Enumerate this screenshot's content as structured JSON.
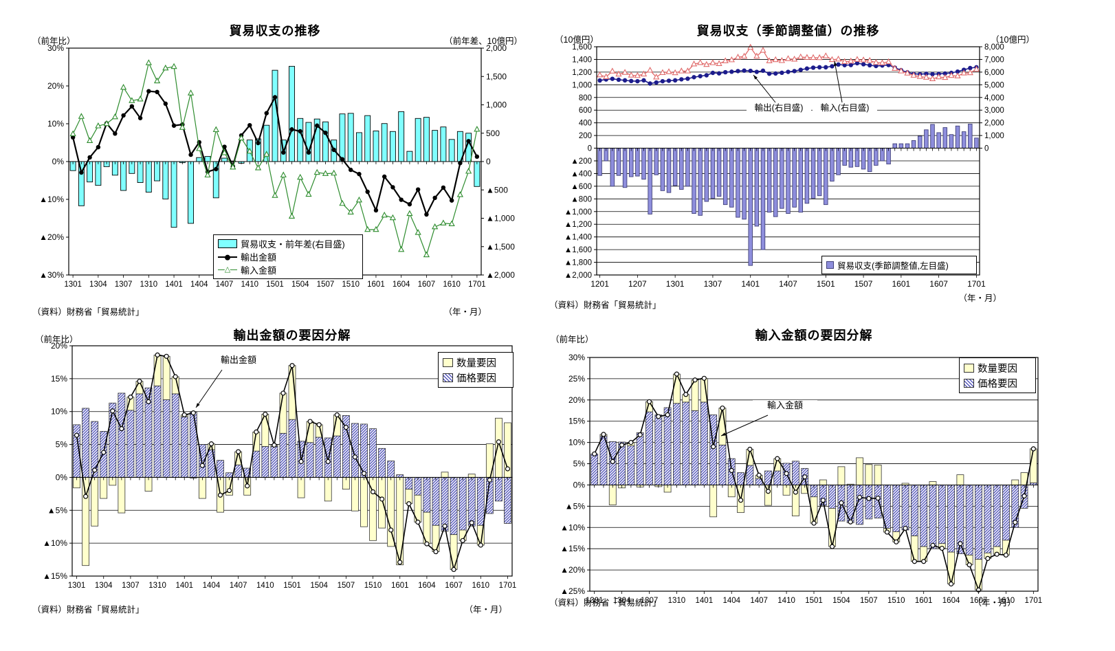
{
  "chart_data": [
    {
      "type": "bar",
      "title": "貿易収支の推移",
      "left_axis_unit": "（前年比）",
      "right_axis_unit": "（前年差、10億円）",
      "source": "（資料）財務省「貿易統計」",
      "x_axis_unit": "（年・月）",
      "n_points": 49,
      "label_every": 3,
      "x_tick_labels": [
        "1301",
        "1304",
        "1307",
        "1310",
        "1401",
        "1404",
        "1407",
        "1410",
        "1501",
        "1504",
        "1507",
        "1510",
        "1601",
        "1604",
        "1607",
        "1610",
        "1701"
      ],
      "y_left_ticks": [
        "30%",
        "20%",
        "10%",
        "0%",
        "▲10%",
        "▲20%",
        "▲30%"
      ],
      "y_left_range": [
        -30,
        30
      ],
      "y_right_ticks": [
        "2,000",
        "1,500",
        "1,000",
        "500",
        "0",
        "▲500",
        "▲1,000",
        "▲1,500",
        "▲2,000"
      ],
      "y_right_range": [
        -2000,
        2000
      ],
      "grid": false,
      "legend_position": "inside-bottom-center",
      "bar_series": {
        "label": "貿易収支・前年差(右目盛)",
        "color": "#80FFFF",
        "axis": "right",
        "values": [
          -160,
          -780,
          -360,
          -420,
          -90,
          -240,
          -510,
          -210,
          -370,
          -540,
          -340,
          -660,
          -1160,
          -20,
          -1090,
          70,
          90,
          -640,
          60,
          10,
          -30,
          380,
          400,
          640,
          1610,
          380,
          1680,
          760,
          690,
          750,
          700,
          380,
          840,
          850,
          510,
          810,
          540,
          670,
          530,
          880,
          180,
          760,
          780,
          550,
          610,
          390,
          530,
          500,
          -440
        ]
      },
      "line_series": [
        {
          "label": "輸出金額",
          "color": "#000000",
          "marker": "filled-circle",
          "values": [
            6.4,
            -2.9,
            1.1,
            3.8,
            10.1,
            7.4,
            12.2,
            14.6,
            11.5,
            18.6,
            18.4,
            15.3,
            9.5,
            9.8,
            1.8,
            5.1,
            -2.7,
            -2.0,
            3.9,
            -1.3,
            6.9,
            9.6,
            4.9,
            12.8,
            17.0,
            2.4,
            8.5,
            8.0,
            2.4,
            9.5,
            7.6,
            3.1,
            0.6,
            -2.2,
            -3.3,
            -8.0,
            -12.9,
            -4.0,
            -6.8,
            -10.1,
            -11.3,
            -7.4,
            -14.0,
            -9.6,
            -6.9,
            -10.3,
            -0.4,
            5.4,
            1.3
          ]
        },
        {
          "label": "輸入金額",
          "color": "#2E8C2E",
          "marker": "open-triangle",
          "values": [
            7.3,
            11.9,
            5.5,
            9.4,
            10.0,
            11.8,
            19.6,
            16.1,
            16.5,
            26.1,
            21.3,
            24.7,
            25.1,
            9.0,
            18.1,
            3.4,
            -3.6,
            8.4,
            2.3,
            -1.5,
            6.2,
            2.7,
            -1.7,
            1.9,
            -9.0,
            -3.6,
            -14.5,
            -4.2,
            -8.7,
            -2.9,
            -3.2,
            -3.1,
            -11.1,
            -13.4,
            -10.2,
            -18.0,
            -18.0,
            -14.2,
            -14.9,
            -23.3,
            -13.8,
            -18.8,
            -24.7,
            -17.3,
            -16.3,
            -16.5,
            -8.8,
            -2.6,
            8.5
          ]
        }
      ]
    },
    {
      "type": "bar",
      "title": "貿易収支（季節調整値）の推移",
      "left_axis_unit": "（10億円）",
      "right_axis_unit": "（10億円）",
      "source": "（資料）財務省「貿易統計」",
      "x_axis_unit": "（年・月）",
      "n_points": 61,
      "label_every": 6,
      "x_tick_labels": [
        "1201",
        "1207",
        "1301",
        "1307",
        "1401",
        "1407",
        "1501",
        "1507",
        "1601",
        "1607",
        "1701"
      ],
      "y_left_ticks": [
        "1,600",
        "1,400",
        "1,200",
        "1,000",
        "800",
        "600",
        "400",
        "200",
        "0",
        "▲200",
        "▲400",
        "▲600",
        "▲800",
        "▲1,000",
        "▲1,200",
        "▲1,400",
        "▲1,600",
        "▲1,800",
        "▲2,000"
      ],
      "y_left_range": [
        -2000,
        1600
      ],
      "y_right_ticks": [
        "8,000",
        "7,000",
        "6,000",
        "5,000",
        "4,000",
        "3,000",
        "2,000",
        "1,000",
        "0"
      ],
      "y_right_range": [
        0,
        8000
      ],
      "grid": true,
      "legend_position": "inside-bottom-right",
      "annotations": [
        "輸出(右目盛)",
        "輸入(右目盛)"
      ],
      "bar_series": {
        "label": "貿易収支(季節調整値,左目盛)",
        "color": "#8E8EDC",
        "axis": "left",
        "values": [
          -430,
          -200,
          -600,
          -430,
          -620,
          -450,
          -440,
          -490,
          -1040,
          -420,
          -670,
          -700,
          -590,
          -650,
          -600,
          -1030,
          -1060,
          -840,
          -790,
          -760,
          -890,
          -930,
          -1090,
          -1120,
          -1850,
          -1230,
          -1600,
          -1010,
          -1080,
          -950,
          -1030,
          -930,
          -1010,
          -870,
          -790,
          -750,
          -890,
          -520,
          -420,
          -270,
          -300,
          -290,
          -330,
          -370,
          -270,
          -200,
          -250,
          70,
          70,
          70,
          120,
          190,
          290,
          375,
          245,
          325,
          215,
          350,
          260,
          380,
          160
        ]
      },
      "line_series": [
        {
          "label": "輸出(右目盛)",
          "color": "#1C1C8C",
          "marker": "filled-circle",
          "values": [
            5340,
            5420,
            5470,
            5400,
            5350,
            5300,
            5280,
            5350,
            5100,
            5180,
            5280,
            5320,
            5350,
            5430,
            5480,
            5600,
            5680,
            5750,
            5940,
            5900,
            5990,
            6030,
            6080,
            6120,
            6100,
            6020,
            6110,
            5870,
            5890,
            5950,
            6020,
            6080,
            6180,
            6280,
            6350,
            6380,
            6380,
            6460,
            6600,
            6550,
            6560,
            6700,
            6620,
            6540,
            6480,
            6520,
            6560,
            6350,
            6150,
            5980,
            5860,
            5840,
            5870,
            5840,
            5860,
            5890,
            5940,
            6040,
            6180,
            6320,
            6380
          ]
        },
        {
          "label": "輸入(右目盛)",
          "color": "#E06A6A",
          "marker": "open-triangle",
          "values": [
            5770,
            5620,
            6070,
            5830,
            5970,
            5750,
            5720,
            5840,
            6140,
            5600,
            5950,
            6020,
            5940,
            6080,
            6080,
            6630,
            6740,
            6590,
            6730,
            6660,
            6880,
            6960,
            7170,
            7240,
            7950,
            7250,
            7710,
            6880,
            6970,
            6900,
            7050,
            7010,
            7190,
            7150,
            7140,
            7130,
            7270,
            6980,
            7020,
            6820,
            6860,
            6990,
            6950,
            6910,
            6750,
            6720,
            6810,
            6280,
            6080,
            5910,
            5740,
            5650,
            5580,
            5465,
            5615,
            5565,
            5725,
            5690,
            5920,
            5940,
            6220
          ]
        }
      ]
    },
    {
      "type": "bar",
      "title": "輸出金額の要因分解",
      "left_axis_unit": "（前年比）",
      "source": "（資料）財務省「貿易統計」",
      "x_axis_unit": "（年・月）",
      "n_points": 49,
      "label_every": 3,
      "x_tick_labels": [
        "1301",
        "1304",
        "1307",
        "1310",
        "1401",
        "1404",
        "1407",
        "1410",
        "1501",
        "1504",
        "1507",
        "1510",
        "1601",
        "1604",
        "1607",
        "1610",
        "1701"
      ],
      "y_left_ticks": [
        "20%",
        "15%",
        "10%",
        "5%",
        "0%",
        "▲5%",
        "▲10%",
        "▲15%"
      ],
      "y_left_range": [
        -15,
        20
      ],
      "grid": true,
      "legend_position": "inside-top-right",
      "annotation": "輸出金額",
      "bar_series": [
        {
          "label": "数量要因",
          "color": "#FFFFCC",
          "style": "solid",
          "values": [
            -1.6,
            -13.4,
            -7.4,
            -3.2,
            -1.2,
            -5.4,
            2.0,
            1.9,
            -2.1,
            4.7,
            6.6,
            2.6,
            0.3,
            -0.1,
            -3.2,
            0.9,
            -5.3,
            -2.7,
            2.0,
            -2.7,
            2.9,
            4.9,
            0.2,
            6.1,
            8.2,
            -3.1,
            3.2,
            1.9,
            -3.6,
            3.2,
            -1.8,
            -5.1,
            -7.5,
            -9.6,
            -7.7,
            -10.5,
            -13.3,
            -2.2,
            -4.1,
            -4.8,
            -4.0,
            0.8,
            -5.3,
            -1.6,
            0.5,
            -3.0,
            5.1,
            9.0,
            8.3
          ]
        },
        {
          "label": "価格要因",
          "color": "#5558BC",
          "style": "hatch",
          "values": [
            8.0,
            10.5,
            8.5,
            7.0,
            11.3,
            12.8,
            10.2,
            12.7,
            13.6,
            13.9,
            11.8,
            12.7,
            9.2,
            9.9,
            5.0,
            4.2,
            2.6,
            0.7,
            1.9,
            1.4,
            4.0,
            4.7,
            4.7,
            6.7,
            8.8,
            5.5,
            5.3,
            6.1,
            6.0,
            6.3,
            9.4,
            8.2,
            8.1,
            7.4,
            4.4,
            2.5,
            0.4,
            -1.8,
            -2.7,
            -5.3,
            -7.3,
            -8.2,
            -8.7,
            -8.0,
            -7.4,
            -7.3,
            -5.5,
            -3.6,
            -7.0
          ]
        }
      ],
      "line_series": [
        {
          "label": "輸出金額",
          "color": "#000000",
          "marker": "open-circle",
          "values": [
            6.4,
            -2.9,
            1.1,
            3.8,
            10.1,
            7.4,
            12.2,
            14.6,
            11.5,
            18.6,
            18.4,
            15.3,
            9.5,
            9.8,
            1.8,
            5.1,
            -2.7,
            -2.0,
            3.9,
            -1.3,
            6.9,
            9.6,
            4.9,
            12.8,
            17.0,
            2.4,
            8.5,
            8.0,
            2.4,
            9.5,
            7.6,
            3.1,
            0.6,
            -2.2,
            -3.3,
            -8.0,
            -12.9,
            -4.0,
            -6.8,
            -10.1,
            -11.3,
            -7.4,
            -14.0,
            -9.6,
            -6.9,
            -10.3,
            -0.4,
            5.4,
            1.3
          ]
        }
      ]
    },
    {
      "type": "bar",
      "title": "輸入金額の要因分解",
      "left_axis_unit": "（前年比）",
      "source": "（資料）財務省「貿易統計」",
      "x_axis_unit": "（年・月）",
      "n_points": 49,
      "label_every": 3,
      "x_tick_labels": [
        "1301",
        "1304",
        "1307",
        "1310",
        "1401",
        "1404",
        "1407",
        "1410",
        "1501",
        "1504",
        "1507",
        "1510",
        "1601",
        "1604",
        "1607",
        "1610",
        "1701"
      ],
      "y_left_ticks": [
        "30%",
        "25%",
        "20%",
        "15%",
        "10%",
        "5%",
        "0%",
        "▲5%",
        "▲10%",
        "▲15%",
        "▲20%",
        "▲25%"
      ],
      "y_left_range": [
        -25,
        30
      ],
      "grid": true,
      "legend_position": "inside-top-right",
      "annotation": "輸入金額",
      "bar_series": [
        {
          "label": "数量要因",
          "color": "#FFFFCC",
          "style": "solid",
          "values": [
            0.0,
            0.4,
            -4.7,
            -0.7,
            0.8,
            -0.5,
            2.4,
            -0.4,
            -1.7,
            6.9,
            1.8,
            7.2,
            5.6,
            -7.5,
            8.7,
            -2.8,
            -6.5,
            3.8,
            0.8,
            -4.8,
            2.9,
            -2.4,
            -7.3,
            -2.0,
            -6.2,
            1.2,
            -9.0,
            4.3,
            0.2,
            6.4,
            4.8,
            4.7,
            -0.9,
            -2.4,
            0.4,
            -6.0,
            -3.5,
            0.8,
            -1.1,
            -7.5,
            2.4,
            -2.3,
            -7.2,
            -1.3,
            -1.8,
            -3.5,
            1.2,
            2.9,
            8.0
          ]
        },
        {
          "label": "価格要因",
          "color": "#5558BC",
          "style": "hatch",
          "values": [
            7.3,
            11.5,
            10.2,
            10.1,
            9.2,
            12.3,
            17.2,
            16.5,
            18.2,
            19.2,
            19.5,
            17.5,
            19.5,
            16.5,
            9.4,
            6.2,
            2.9,
            4.6,
            1.5,
            3.3,
            3.3,
            5.1,
            5.6,
            3.9,
            -2.8,
            -4.8,
            -5.5,
            -8.5,
            -8.9,
            -9.3,
            -8.0,
            -7.8,
            -10.2,
            -11.0,
            -10.6,
            -12.0,
            -14.5,
            -15.0,
            -13.8,
            -15.8,
            -16.2,
            -16.5,
            -17.5,
            -16.0,
            -14.5,
            -13.0,
            -10.0,
            -5.5,
            0.5
          ]
        }
      ],
      "line_series": [
        {
          "label": "輸入金額",
          "color": "#000000",
          "marker": "open-circle",
          "values": [
            7.3,
            11.9,
            5.5,
            9.4,
            10.0,
            11.8,
            19.6,
            16.1,
            16.5,
            26.1,
            21.3,
            24.7,
            25.1,
            9.0,
            18.1,
            3.4,
            -3.6,
            8.4,
            2.3,
            -1.5,
            6.2,
            2.7,
            -1.7,
            1.9,
            -9.0,
            -3.6,
            -14.5,
            -4.2,
            -8.7,
            -2.9,
            -3.2,
            -3.1,
            -11.1,
            -13.4,
            -10.2,
            -18.0,
            -18.0,
            -14.2,
            -14.9,
            -23.3,
            -13.8,
            -18.8,
            -24.7,
            -17.3,
            -16.3,
            -16.5,
            -8.8,
            -2.6,
            8.5
          ]
        }
      ]
    }
  ]
}
